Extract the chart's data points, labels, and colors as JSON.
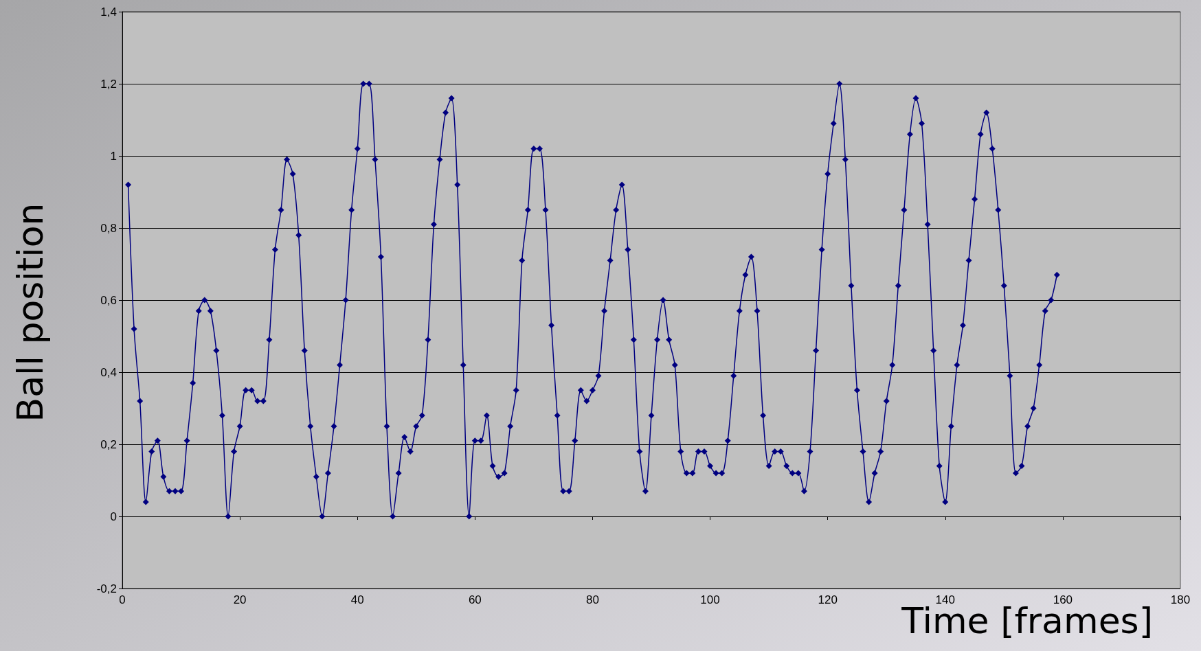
{
  "chart_data": {
    "type": "line",
    "xlabel": "Time [frames]",
    "ylabel": "Ball position",
    "x": [
      1,
      2,
      3,
      4,
      5,
      6,
      7,
      8,
      9,
      10,
      11,
      12,
      13,
      14,
      15,
      16,
      17,
      18,
      19,
      20,
      21,
      22,
      23,
      24,
      25,
      26,
      27,
      28,
      29,
      30,
      31,
      32,
      33,
      34,
      35,
      36,
      37,
      38,
      39,
      40,
      41,
      42,
      43,
      44,
      45,
      46,
      47,
      48,
      49,
      50,
      51,
      52,
      53,
      54,
      55,
      56,
      57,
      58,
      59,
      60,
      61,
      62,
      63,
      64,
      65,
      66,
      67,
      68,
      69,
      70,
      71,
      72,
      73,
      74,
      75,
      76,
      77,
      78,
      79,
      80,
      81,
      82,
      83,
      84,
      85,
      86,
      87,
      88,
      89,
      90,
      91,
      92,
      93,
      94,
      95,
      96,
      97,
      98,
      99,
      100,
      101,
      102,
      103,
      104,
      105,
      106,
      107,
      108,
      109,
      110,
      111,
      112,
      113,
      114,
      115,
      116,
      117,
      118,
      119,
      120,
      121,
      122,
      123,
      124,
      125,
      126,
      127,
      128,
      129,
      130,
      131,
      132,
      133,
      134,
      135,
      136,
      137,
      138,
      139,
      140,
      141,
      142,
      143,
      144,
      145,
      146,
      147,
      148,
      149,
      150,
      151,
      152,
      153,
      154,
      155,
      156,
      157,
      158,
      159
    ],
    "series": [
      {
        "color": "#000080",
        "values": [
          0.92,
          0.52,
          0.32,
          0.04,
          0.18,
          0.21,
          0.11,
          0.07,
          0.07,
          0.07,
          0.21,
          0.37,
          0.57,
          0.6,
          0.57,
          0.46,
          0.28,
          0,
          0.18,
          0.25,
          0.35,
          0.35,
          0.32,
          0.32,
          0.49,
          0.74,
          0.85,
          0.99,
          0.95,
          0.78,
          0.46,
          0.25,
          0.11,
          0,
          0.12,
          0.25,
          0.42,
          0.6,
          0.85,
          1.02,
          1.2,
          1.2,
          0.99,
          0.72,
          0.25,
          0,
          0.12,
          0.22,
          0.18,
          0.25,
          0.28,
          0.49,
          0.81,
          0.99,
          1.12,
          1.16,
          0.92,
          0.42,
          0,
          0.21,
          0.21,
          0.28,
          0.14,
          0.11,
          0.12,
          0.25,
          0.35,
          0.71,
          0.85,
          1.02,
          1.02,
          0.85,
          0.53,
          0.28,
          0.07,
          0.07,
          0.21,
          0.35,
          0.32,
          0.35,
          0.39,
          0.57,
          0.71,
          0.85,
          0.92,
          0.74,
          0.49,
          0.18,
          0.07,
          0.28,
          0.49,
          0.6,
          0.49,
          0.42,
          0.18,
          0.12,
          0.12,
          0.18,
          0.18,
          0.14,
          0.12,
          0.12,
          0.21,
          0.39,
          0.57,
          0.67,
          0.72,
          0.57,
          0.28,
          0.14,
          0.18,
          0.18,
          0.14,
          0.12,
          0.12,
          0.07,
          0.18,
          0.46,
          0.74,
          0.95,
          1.09,
          1.2,
          0.99,
          0.64,
          0.35,
          0.18,
          0.04,
          0.12,
          0.18,
          0.32,
          0.42,
          0.64,
          0.85,
          1.06,
          1.16,
          1.09,
          0.81,
          0.46,
          0.14,
          0.04,
          0.25,
          0.42,
          0.53,
          0.71,
          0.88,
          1.06,
          1.12,
          1.02,
          0.85,
          0.64,
          0.39,
          0.12,
          0.14,
          0.25,
          0.3,
          0.42,
          0.57,
          0.6,
          0.67
        ]
      }
    ],
    "xlim": [
      0,
      180
    ],
    "xticks": [
      0,
      20,
      40,
      60,
      80,
      100,
      120,
      140,
      160,
      180
    ],
    "ylim": [
      -0.2,
      1.4
    ],
    "yticks": [
      {
        "value": -0.2,
        "label": "-0,2"
      },
      0,
      {
        "value": 0.2,
        "label": "0,2"
      },
      {
        "value": 0.4,
        "label": "0,4"
      },
      {
        "value": 0.6,
        "label": "0,6"
      },
      {
        "value": 0.8,
        "label": "0,8"
      },
      1,
      {
        "value": 1.2,
        "label": "1,2"
      },
      {
        "value": 1.4,
        "label": "1,4"
      }
    ],
    "grid": "y",
    "marker": "diamond",
    "line_style": "solid"
  }
}
